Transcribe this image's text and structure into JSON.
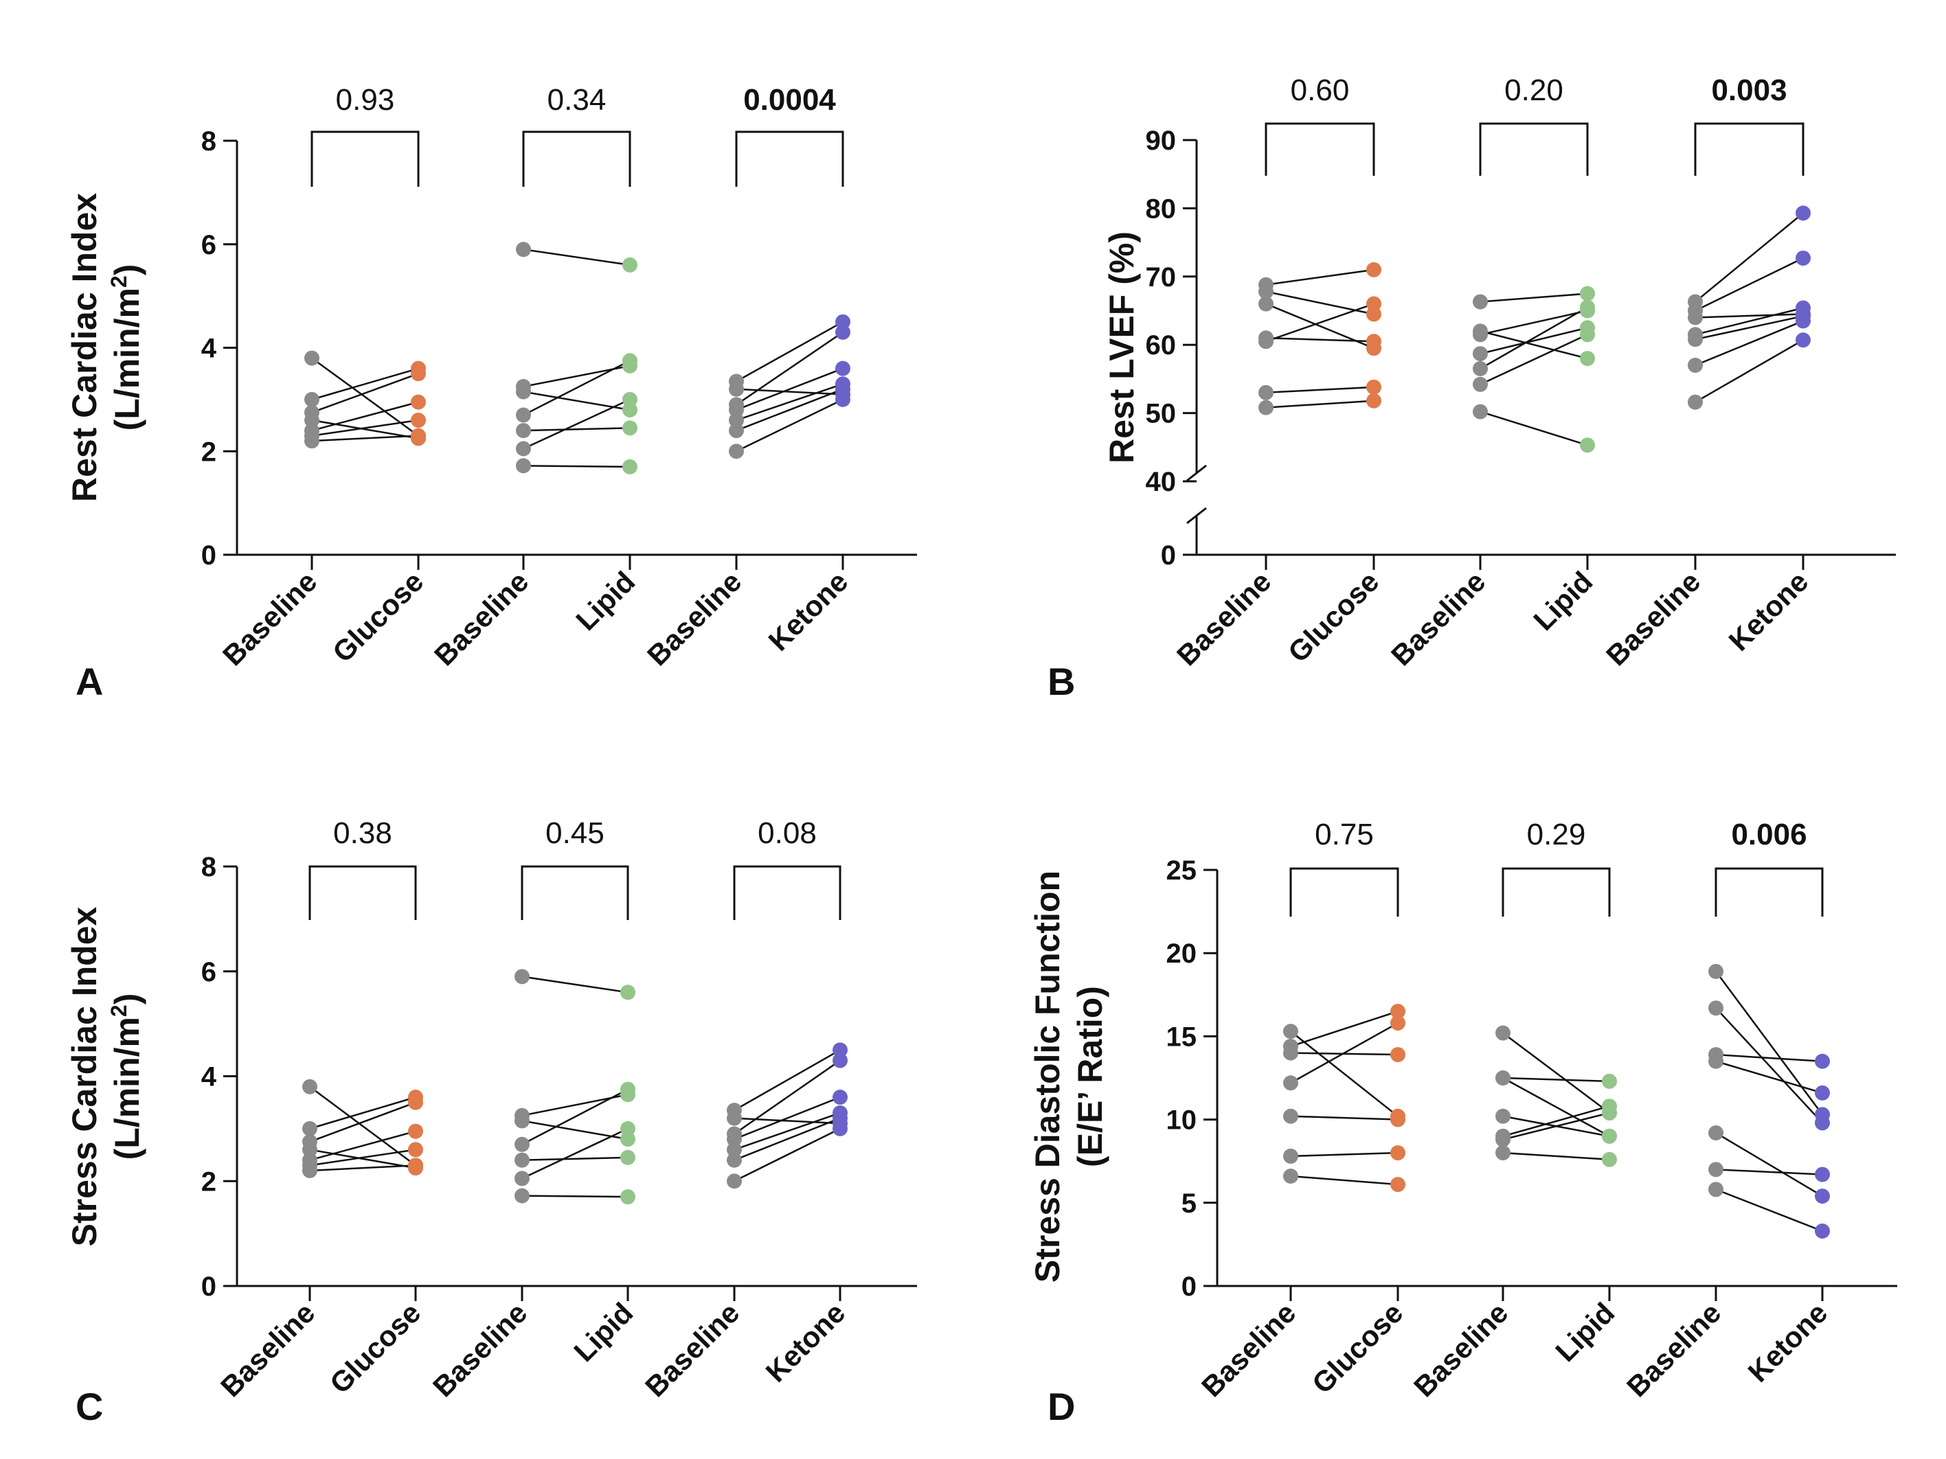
{
  "colors": {
    "baseline": "#8a8a8a",
    "glucose": "#e07a4a",
    "lipid": "#93c48a",
    "ketone": "#6a62c8",
    "line": "#111111"
  },
  "chart_data": [
    {
      "panel": "A",
      "type": "scatter",
      "ylabel": [
        "Rest Cardiac Index",
        "(L/min/m",
        "2",
        ")"
      ],
      "ylim": [
        0,
        8
      ],
      "yticks": [
        "0",
        "2",
        "4",
        "6",
        "8"
      ],
      "categories": [
        "Baseline",
        "Glucose",
        "Baseline",
        "Lipid",
        "Baseline",
        "Ketone"
      ],
      "groups": [
        {
          "name": "Glucose",
          "pvalue": "0.93",
          "bold": false,
          "pairs": [
            [
              3.8,
              2.3
            ],
            [
              3.0,
              3.6
            ],
            [
              2.75,
              3.5
            ],
            [
              2.6,
              2.25
            ],
            [
              2.4,
              2.95
            ],
            [
              2.3,
              2.6
            ],
            [
              2.2,
              2.3
            ]
          ]
        },
        {
          "name": "Lipid",
          "pvalue": "0.34",
          "bold": false,
          "pairs": [
            [
              5.9,
              5.6
            ],
            [
              3.25,
              3.65
            ],
            [
              3.15,
              2.8
            ],
            [
              2.7,
              3.75
            ],
            [
              2.4,
              2.45
            ],
            [
              2.05,
              3.0
            ],
            [
              1.72,
              1.7
            ]
          ]
        },
        {
          "name": "Ketone",
          "pvalue": "0.0004",
          "bold": true,
          "pairs": [
            [
              3.35,
              4.5
            ],
            [
              3.2,
              3.1
            ],
            [
              2.9,
              4.3
            ],
            [
              2.8,
              3.6
            ],
            [
              2.6,
              3.3
            ],
            [
              2.4,
              3.2
            ],
            [
              2.0,
              3.0
            ]
          ]
        }
      ]
    },
    {
      "panel": "B",
      "type": "scatter",
      "ylabel": [
        "Rest LVEF (%)"
      ],
      "ylim": [
        0,
        90
      ],
      "axis_break": [
        0,
        40
      ],
      "yticks": [
        "0",
        "40",
        "50",
        "60",
        "70",
        "80",
        "90"
      ],
      "categories": [
        "Baseline",
        "Glucose",
        "Baseline",
        "Lipid",
        "Baseline",
        "Ketone"
      ],
      "groups": [
        {
          "name": "Glucose",
          "pvalue": "0.60",
          "bold": false,
          "pairs": [
            [
              68.8,
              71.0
            ],
            [
              67.8,
              64.5
            ],
            [
              66.0,
              59.5
            ],
            [
              61.0,
              60.5
            ],
            [
              60.5,
              66.0
            ],
            [
              53.0,
              53.8
            ],
            [
              50.8,
              51.8
            ]
          ]
        },
        {
          "name": "Lipid",
          "pvalue": "0.20",
          "bold": false,
          "pairs": [
            [
              66.3,
              67.5
            ],
            [
              62.0,
              58.0
            ],
            [
              61.5,
              65.0
            ],
            [
              58.7,
              62.5
            ],
            [
              56.5,
              65.5
            ],
            [
              54.2,
              61.5
            ],
            [
              50.2,
              45.3
            ]
          ]
        },
        {
          "name": "Ketone",
          "pvalue": "0.003",
          "bold": true,
          "pairs": [
            [
              66.3,
              79.3
            ],
            [
              65.0,
              72.7
            ],
            [
              64.0,
              64.5
            ],
            [
              61.5,
              65.4
            ],
            [
              60.8,
              64.2
            ],
            [
              57.0,
              63.5
            ],
            [
              51.6,
              60.7
            ]
          ]
        }
      ]
    },
    {
      "panel": "C",
      "type": "scatter",
      "ylabel": [
        "Stress Cardiac Index",
        "(L/min/m",
        "2",
        ")"
      ],
      "ylim": [
        0,
        8
      ],
      "yticks": [
        "0",
        "2",
        "4",
        "6",
        "8"
      ],
      "categories": [
        "Baseline",
        "Glucose",
        "Baseline",
        "Lipid",
        "Baseline",
        "Ketone"
      ],
      "groups": [
        {
          "name": "Glucose",
          "pvalue": "0.38",
          "bold": false,
          "pairs": [
            [
              3.8,
              2.3
            ],
            [
              3.0,
              3.6
            ],
            [
              2.75,
              3.5
            ],
            [
              2.6,
              2.25
            ],
            [
              2.4,
              2.95
            ],
            [
              2.3,
              2.6
            ],
            [
              2.2,
              2.3
            ]
          ]
        },
        {
          "name": "Lipid",
          "pvalue": "0.45",
          "bold": false,
          "pairs": [
            [
              5.9,
              5.6
            ],
            [
              3.25,
              3.65
            ],
            [
              3.15,
              2.8
            ],
            [
              2.7,
              3.75
            ],
            [
              2.4,
              2.45
            ],
            [
              2.05,
              3.0
            ],
            [
              1.72,
              1.7
            ]
          ]
        },
        {
          "name": "Ketone",
          "pvalue": "0.08",
          "bold": false,
          "pairs": [
            [
              3.35,
              4.5
            ],
            [
              3.2,
              3.1
            ],
            [
              2.9,
              4.3
            ],
            [
              2.8,
              3.6
            ],
            [
              2.6,
              3.3
            ],
            [
              2.4,
              3.2
            ],
            [
              2.0,
              3.0
            ]
          ]
        }
      ]
    },
    {
      "panel": "D",
      "type": "scatter",
      "ylabel": [
        "Stress Diastolic Function",
        "(E/E’ Ratio)"
      ],
      "ylim": [
        0,
        25
      ],
      "yticks": [
        "0",
        "5",
        "10",
        "15",
        "20",
        "25"
      ],
      "categories": [
        "Baseline",
        "Glucose",
        "Baseline",
        "Lipid",
        "Baseline",
        "Ketone"
      ],
      "groups": [
        {
          "name": "Glucose",
          "pvalue": "0.75",
          "bold": false,
          "pairs": [
            [
              15.3,
              10.2
            ],
            [
              14.4,
              16.5
            ],
            [
              14.0,
              13.9
            ],
            [
              12.2,
              15.8
            ],
            [
              10.2,
              10.0
            ],
            [
              7.8,
              8.0
            ],
            [
              6.6,
              6.1
            ]
          ]
        },
        {
          "name": "Lipid",
          "pvalue": "0.29",
          "bold": false,
          "pairs": [
            [
              15.2,
              10.4
            ],
            [
              12.5,
              12.3
            ],
            [
              12.5,
              9.0
            ],
            [
              10.2,
              9.0
            ],
            [
              9.0,
              10.8
            ],
            [
              8.8,
              10.4
            ],
            [
              8.0,
              7.6
            ]
          ]
        },
        {
          "name": "Ketone",
          "pvalue": "0.006",
          "bold": true,
          "pairs": [
            [
              18.9,
              10.3
            ],
            [
              16.7,
              9.8
            ],
            [
              13.9,
              13.5
            ],
            [
              13.5,
              11.6
            ],
            [
              9.2,
              5.4
            ],
            [
              7.0,
              6.7
            ],
            [
              5.8,
              3.3
            ]
          ]
        }
      ]
    }
  ]
}
